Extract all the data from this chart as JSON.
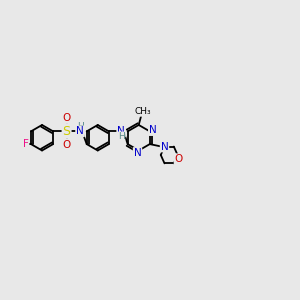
{
  "background_color": "#e8e8e8",
  "bond_color": "#000000",
  "N_color": "#0000cc",
  "O_color": "#cc0000",
  "F_color": "#ee1188",
  "S_color": "#cccc00",
  "H_color": "#558888",
  "C_color": "#000000",
  "font_size": 7.5,
  "line_width": 1.3,
  "xlim": [
    0,
    12
  ],
  "ylim": [
    0,
    10
  ]
}
